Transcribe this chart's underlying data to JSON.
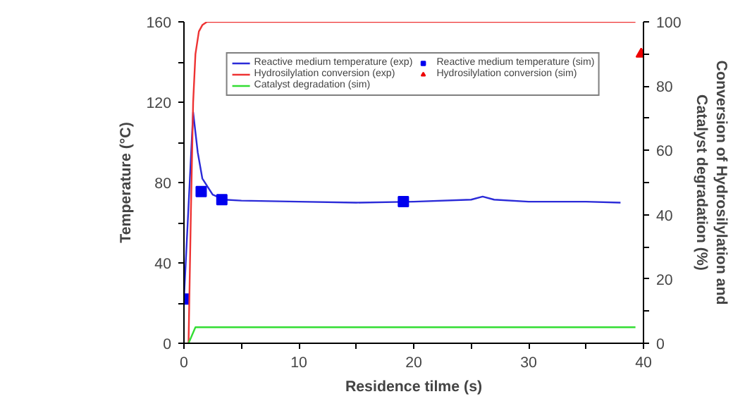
{
  "chart_data": {
    "type": "line",
    "xlabel": "Residence tilme (s)",
    "ylabel": "Temperature (°C)",
    "y2label": "Conversion of Hydrosilylation and Catalyst degradation (%)",
    "xlim": [
      0,
      40
    ],
    "xticks": [
      0,
      {
        "value": 5,
        "label": null
      },
      10,
      {
        "value": 15,
        "label": null
      },
      20,
      {
        "value": 25,
        "label": null
      },
      30,
      {
        "value": 35,
        "label": null
      },
      40
    ],
    "ylim": [
      0,
      160
    ],
    "yticks": [
      0,
      {
        "value": 20,
        "label": null
      },
      40,
      {
        "value": 60,
        "label": null
      },
      80,
      {
        "value": 100,
        "label": null
      },
      120,
      {
        "value": 140,
        "label": null
      },
      160
    ],
    "y2lim": [
      0,
      100
    ],
    "y2ticks": [
      0,
      {
        "value": 10,
        "label": null
      },
      20,
      {
        "value": 30,
        "label": null
      },
      40,
      {
        "value": 50,
        "label": null
      },
      60,
      {
        "value": 70,
        "label": null
      },
      80,
      {
        "value": 90,
        "label": null
      },
      100
    ],
    "grid": false,
    "legend": "top",
    "series": [
      {
        "name": "Reactive medium temperature (exp)",
        "color": "#2b2bd8",
        "x": [
          0,
          0.8,
          1.2,
          1.6,
          2.5,
          3.5,
          5,
          10,
          15,
          20,
          25,
          26,
          27,
          30,
          35,
          38
        ],
        "values": [
          22,
          115,
          95,
          82,
          74,
          71.5,
          71,
          70.5,
          70,
          70.5,
          71.5,
          73,
          71.5,
          70.5,
          70.5,
          70
        ]
      },
      {
        "name": "Reactive medium temperature (sim)",
        "color": "#0000ee",
        "type": "scatter",
        "marker": "square",
        "x": [
          0,
          1.5,
          3.3,
          19.1
        ],
        "values": [
          22,
          75.5,
          71.5,
          70.5
        ]
      },
      {
        "name": "Hydrosilylation conversion (exp)",
        "color": "#ee3333",
        "axis": "y2",
        "x": [
          0.4,
          0.6,
          0.8,
          1.0,
          1.3,
          1.6,
          2,
          39.3
        ],
        "values": [
          0,
          40,
          75,
          90,
          97,
          99,
          100,
          100
        ]
      },
      {
        "name": "Hydrosilylation conversion (sim)",
        "color": "#ee0000",
        "type": "scatter",
        "marker": "triangle",
        "axis": "y2",
        "x": [
          39.8
        ],
        "values": [
          90
        ]
      },
      {
        "name": "Catalyst degradation (sim)",
        "color": "#33dd33",
        "axis": "y2",
        "x": [
          0.4,
          1.0,
          39.3
        ],
        "values": [
          0,
          5,
          5
        ]
      }
    ]
  }
}
